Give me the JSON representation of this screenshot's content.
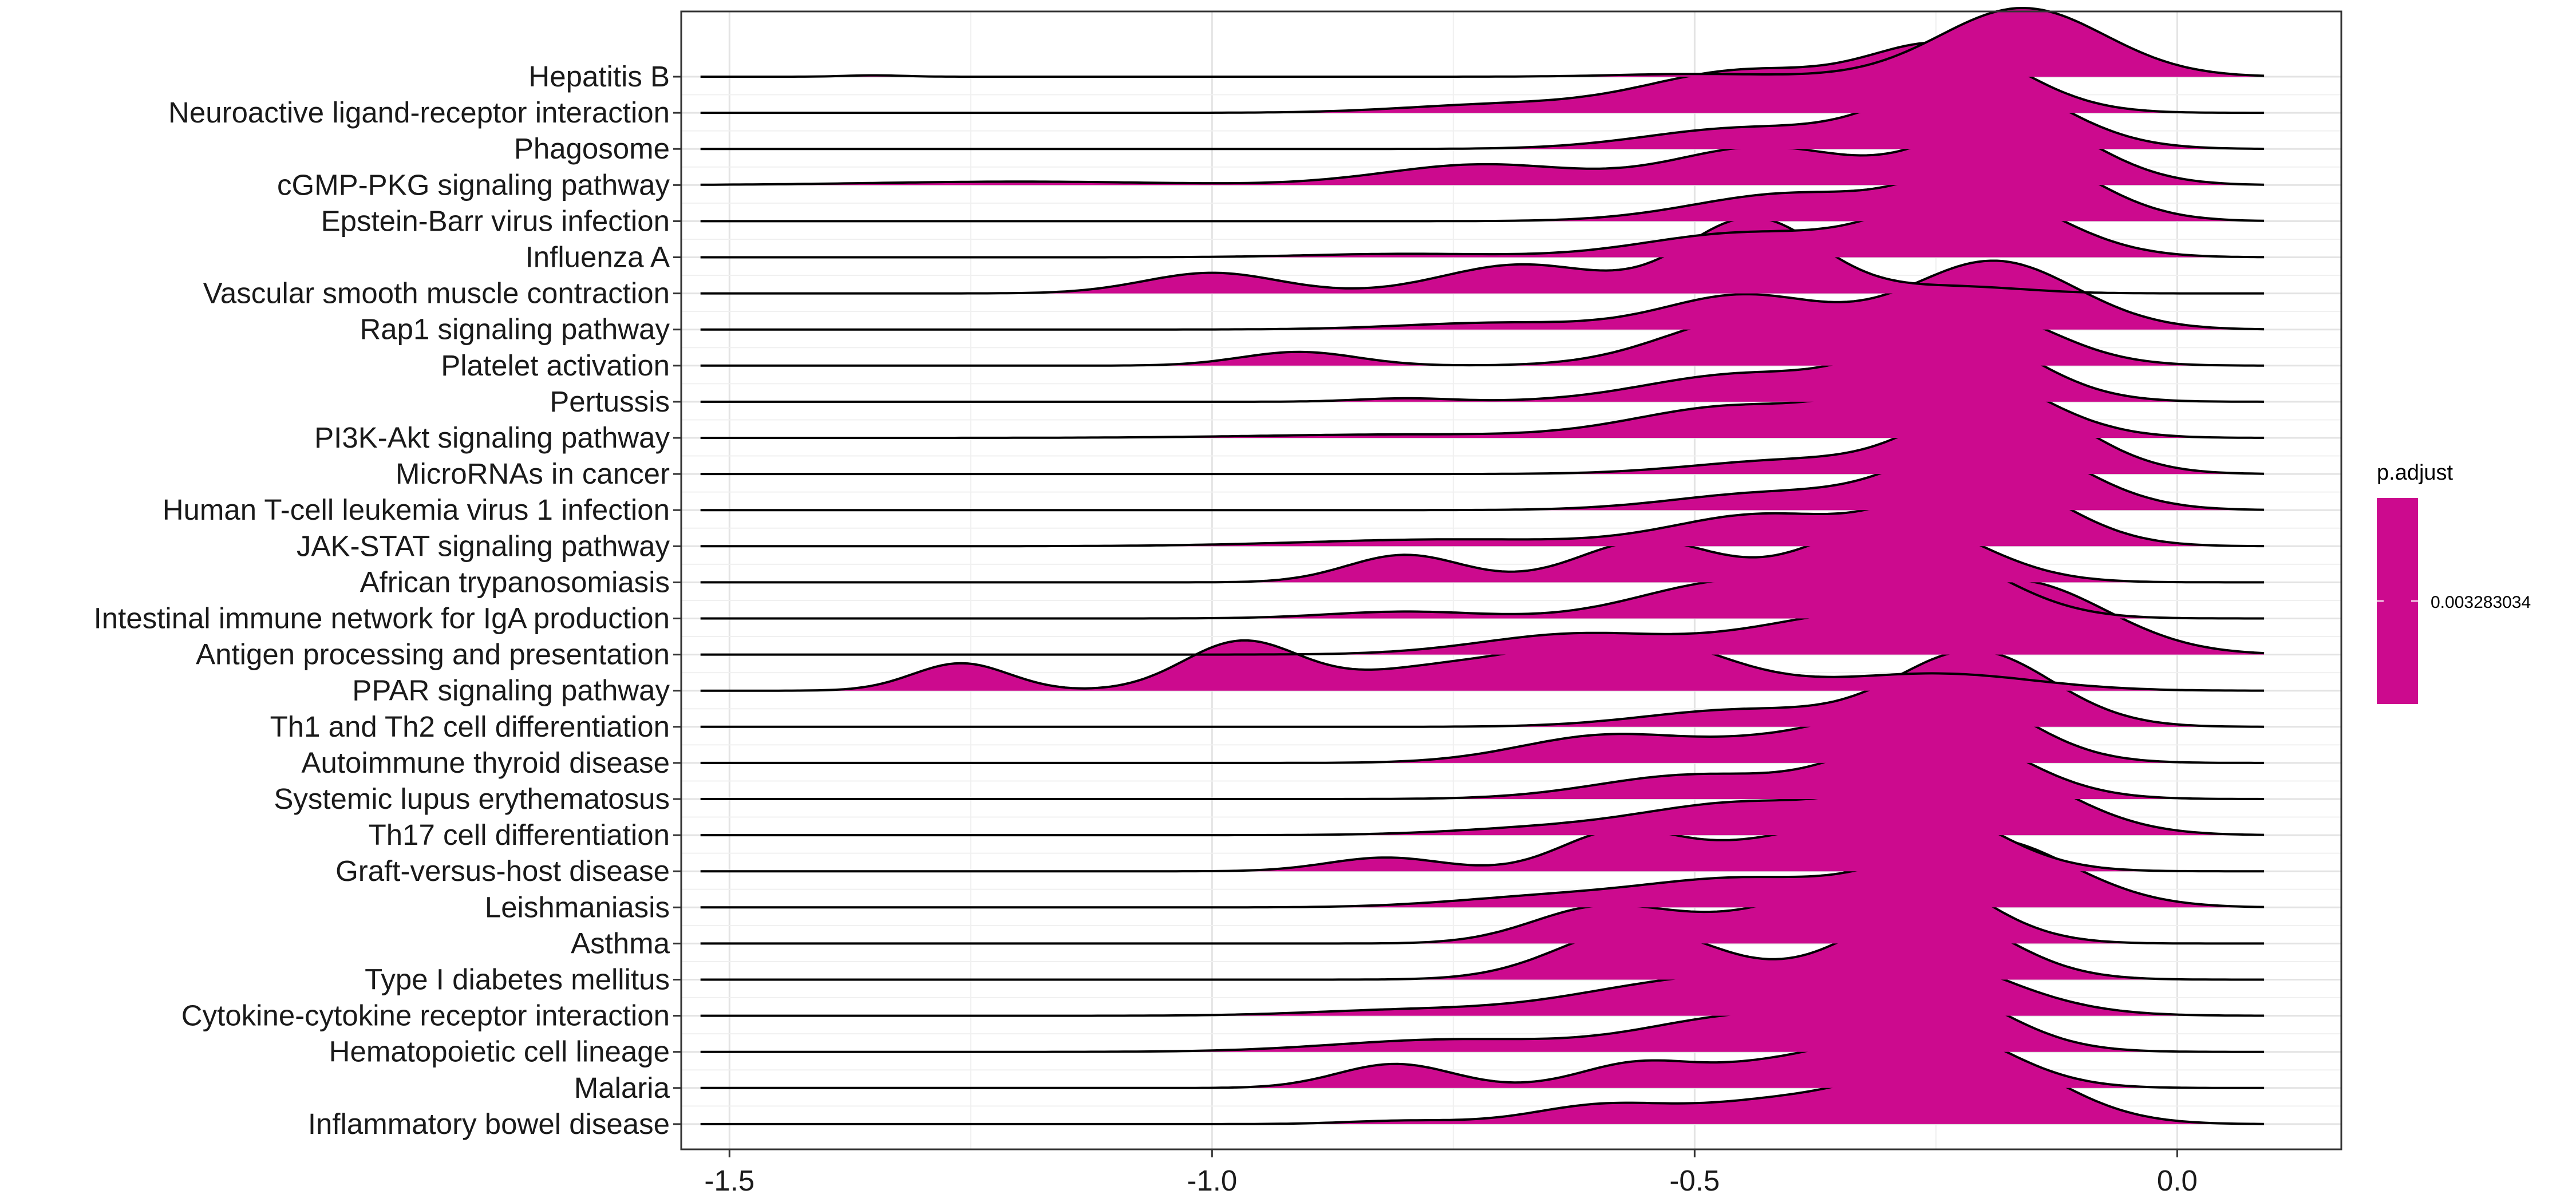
{
  "chart_data": {
    "type": "ridgeline",
    "title": "",
    "xlabel": "",
    "ylabel": "",
    "xlim": [
      -1.55,
      0.17
    ],
    "x_ticks": [
      -1.5,
      -1.0,
      -0.5,
      0.0
    ],
    "x_tick_labels": [
      "-1.5",
      "-1.0",
      "-0.5",
      "0.0"
    ],
    "grid": true,
    "fill_color": "#CC0A8E",
    "line_color": "#000000",
    "categories_top_to_bottom": [
      "Hepatitis B",
      "Neuroactive ligand-receptor interaction",
      "Phagosome",
      "cGMP-PKG signaling pathway",
      "Epstein-Barr virus infection",
      "Influenza A",
      "Vascular smooth muscle contraction",
      "Rap1 signaling pathway",
      "Platelet activation",
      "Pertussis",
      "PI3K-Akt signaling pathway",
      "MicroRNAs in cancer",
      "Human T-cell leukemia virus 1 infection",
      "JAK-STAT signaling pathway",
      "African trypanosomiasis",
      "Intestinal immune network for IgA production",
      "Antigen processing and presentation",
      "PPAR signaling pathway",
      "Th1 and Th2 cell differentiation",
      "Autoimmune thyroid disease",
      "Systemic lupus erythematosus",
      "Th17 cell differentiation",
      "Graft-versus-host disease",
      "Leishmaniasis",
      "Asthma",
      "Type I diabetes mellitus",
      "Cytokine-cytokine receptor interaction",
      "Hematopoietic cell lineage",
      "Malaria",
      "Inflammatory bowel disease"
    ],
    "density_range": [
      -1.53,
      0.09
    ],
    "series": [
      {
        "peaks": [
          [
            -0.16,
            0.085,
            1.0
          ],
          [
            -0.5,
            0.08,
            0.04
          ],
          [
            -1.35,
            0.03,
            0.02
          ]
        ]
      },
      {
        "peaks": [
          [
            -0.24,
            0.08,
            0.95
          ],
          [
            -0.45,
            0.1,
            0.6
          ],
          [
            -0.7,
            0.1,
            0.12
          ]
        ]
      },
      {
        "peaks": [
          [
            -0.21,
            0.085,
            1.05
          ],
          [
            -0.45,
            0.1,
            0.3
          ]
        ]
      },
      {
        "peaks": [
          [
            -0.17,
            0.08,
            1.0
          ],
          [
            -0.43,
            0.09,
            0.55
          ],
          [
            -0.72,
            0.1,
            0.3
          ],
          [
            -1.2,
            0.15,
            0.05
          ]
        ]
      },
      {
        "peaks": [
          [
            -0.17,
            0.08,
            1.0
          ],
          [
            -0.4,
            0.1,
            0.4
          ]
        ]
      },
      {
        "peaks": [
          [
            -0.21,
            0.085,
            0.95
          ],
          [
            -0.45,
            0.1,
            0.35
          ],
          [
            -0.8,
            0.1,
            0.05
          ]
        ]
      },
      {
        "peaks": [
          [
            -0.44,
            0.07,
            1.1
          ],
          [
            -0.68,
            0.08,
            0.42
          ],
          [
            -1.0,
            0.07,
            0.3
          ],
          [
            -0.23,
            0.07,
            0.1
          ]
        ]
      },
      {
        "peaks": [
          [
            -0.19,
            0.085,
            1.0
          ],
          [
            -0.45,
            0.08,
            0.5
          ],
          [
            -0.7,
            0.1,
            0.1
          ]
        ]
      },
      {
        "peaks": [
          [
            -0.21,
            0.08,
            0.8
          ],
          [
            -0.44,
            0.09,
            0.7
          ],
          [
            -0.91,
            0.06,
            0.2
          ]
        ]
      },
      {
        "peaks": [
          [
            -0.23,
            0.08,
            1.0
          ],
          [
            -0.45,
            0.1,
            0.4
          ],
          [
            -0.8,
            0.05,
            0.05
          ]
        ]
      },
      {
        "peaks": [
          [
            -0.23,
            0.085,
            1.0
          ],
          [
            -0.46,
            0.1,
            0.45
          ],
          [
            -0.8,
            0.15,
            0.05
          ]
        ]
      },
      {
        "peaks": [
          [
            -0.18,
            0.08,
            1.1
          ],
          [
            -0.4,
            0.1,
            0.2
          ]
        ]
      },
      {
        "peaks": [
          [
            -0.19,
            0.085,
            1.05
          ],
          [
            -0.42,
            0.1,
            0.25
          ]
        ]
      },
      {
        "peaks": [
          [
            -0.2,
            0.08,
            1.0
          ],
          [
            -0.43,
            0.09,
            0.45
          ],
          [
            -0.75,
            0.15,
            0.1
          ]
        ]
      },
      {
        "peaks": [
          [
            -0.29,
            0.085,
            0.9
          ],
          [
            -0.55,
            0.07,
            0.6
          ],
          [
            -0.8,
            0.06,
            0.4
          ]
        ]
      },
      {
        "peaks": [
          [
            -0.27,
            0.085,
            1.0
          ],
          [
            -0.47,
            0.09,
            0.5
          ],
          [
            -0.8,
            0.08,
            0.1
          ]
        ]
      },
      {
        "peaks": [
          [
            -0.16,
            0.09,
            1.0
          ],
          [
            -0.35,
            0.1,
            0.5
          ],
          [
            -0.62,
            0.1,
            0.3
          ]
        ]
      },
      {
        "peaks": [
          [
            -0.56,
            0.09,
            0.75
          ],
          [
            -0.97,
            0.06,
            0.7
          ],
          [
            -1.26,
            0.05,
            0.4
          ],
          [
            -0.25,
            0.1,
            0.25
          ],
          [
            -0.75,
            0.1,
            0.35
          ]
        ]
      },
      {
        "peaks": [
          [
            -0.21,
            0.08,
            1.1
          ],
          [
            -0.45,
            0.1,
            0.25
          ]
        ]
      },
      {
        "peaks": [
          [
            -0.24,
            0.08,
            1.05
          ],
          [
            -0.59,
            0.09,
            0.4
          ],
          [
            -0.4,
            0.08,
            0.3
          ]
        ]
      },
      {
        "peaks": [
          [
            -0.25,
            0.085,
            1.0
          ],
          [
            -0.5,
            0.1,
            0.35
          ]
        ]
      },
      {
        "peaks": [
          [
            -0.21,
            0.09,
            1.05
          ],
          [
            -0.45,
            0.1,
            0.45
          ],
          [
            -0.65,
            0.1,
            0.1
          ]
        ]
      },
      {
        "peaks": [
          [
            -0.27,
            0.08,
            0.95
          ],
          [
            -0.58,
            0.06,
            0.55
          ],
          [
            -0.82,
            0.06,
            0.2
          ],
          [
            -0.43,
            0.08,
            0.35
          ]
        ]
      },
      {
        "peaks": [
          [
            -0.2,
            0.09,
            1.0
          ],
          [
            -0.45,
            0.1,
            0.4
          ],
          [
            -0.65,
            0.1,
            0.15
          ]
        ]
      },
      {
        "peaks": [
          [
            -0.29,
            0.08,
            1.15
          ],
          [
            -0.6,
            0.07,
            0.5
          ],
          [
            -0.45,
            0.08,
            0.3
          ]
        ]
      },
      {
        "peaks": [
          [
            -0.26,
            0.08,
            1.0
          ],
          [
            -0.56,
            0.08,
            0.75
          ]
        ]
      },
      {
        "peaks": [
          [
            -0.28,
            0.1,
            0.85
          ],
          [
            -0.5,
            0.12,
            0.5
          ],
          [
            -0.8,
            0.1,
            0.08
          ]
        ]
      },
      {
        "peaks": [
          [
            -0.26,
            0.08,
            0.9
          ],
          [
            -0.45,
            0.1,
            0.5
          ],
          [
            -0.75,
            0.12,
            0.18
          ]
        ]
      },
      {
        "peaks": [
          [
            -0.26,
            0.08,
            0.9
          ],
          [
            -0.56,
            0.06,
            0.35
          ],
          [
            -0.81,
            0.06,
            0.35
          ],
          [
            -0.42,
            0.07,
            0.3
          ]
        ]
      },
      {
        "peaks": [
          [
            -0.21,
            0.085,
            1.0
          ],
          [
            -0.6,
            0.07,
            0.25
          ],
          [
            -0.8,
            0.06,
            0.05
          ],
          [
            -0.4,
            0.1,
            0.35
          ]
        ]
      }
    ]
  },
  "legend": {
    "title": "p.adjust",
    "label": "0.003283034",
    "color": "#CC0A8E"
  }
}
